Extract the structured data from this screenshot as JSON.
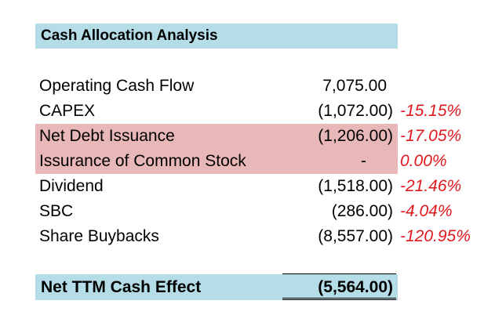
{
  "sheet": {
    "title": "Cash Allocation Analysis",
    "rows": [
      {
        "label": "Operating Cash Flow",
        "value": "7,075.00",
        "pct": "",
        "shaded": false
      },
      {
        "label": "CAPEX",
        "value": "(1,072.00)",
        "pct": "-15.15%",
        "shaded": false
      },
      {
        "label": "Net Debt Issuance",
        "value": "(1,206.00)",
        "pct": "-17.05%",
        "shaded": true
      },
      {
        "label": "Issurance of Common Stock",
        "value": "-",
        "pct": "0.00%",
        "shaded": true
      },
      {
        "label": "Dividend",
        "value": "(1,518.00)",
        "pct": "-21.46%",
        "shaded": false
      },
      {
        "label": "SBC",
        "value": "(286.00)",
        "pct": "-4.04%",
        "shaded": false
      },
      {
        "label": "Share Buybacks",
        "value": "(8,557.00)",
        "pct": "-120.95%",
        "shaded": false
      }
    ],
    "total": {
      "label": "Net TTM Cash Effect",
      "value": "(5,564.00)"
    }
  },
  "colors": {
    "title_fill": "#b4dde7",
    "shaded_fill": "#e8b7b7",
    "percent_text": "#e0181e"
  }
}
